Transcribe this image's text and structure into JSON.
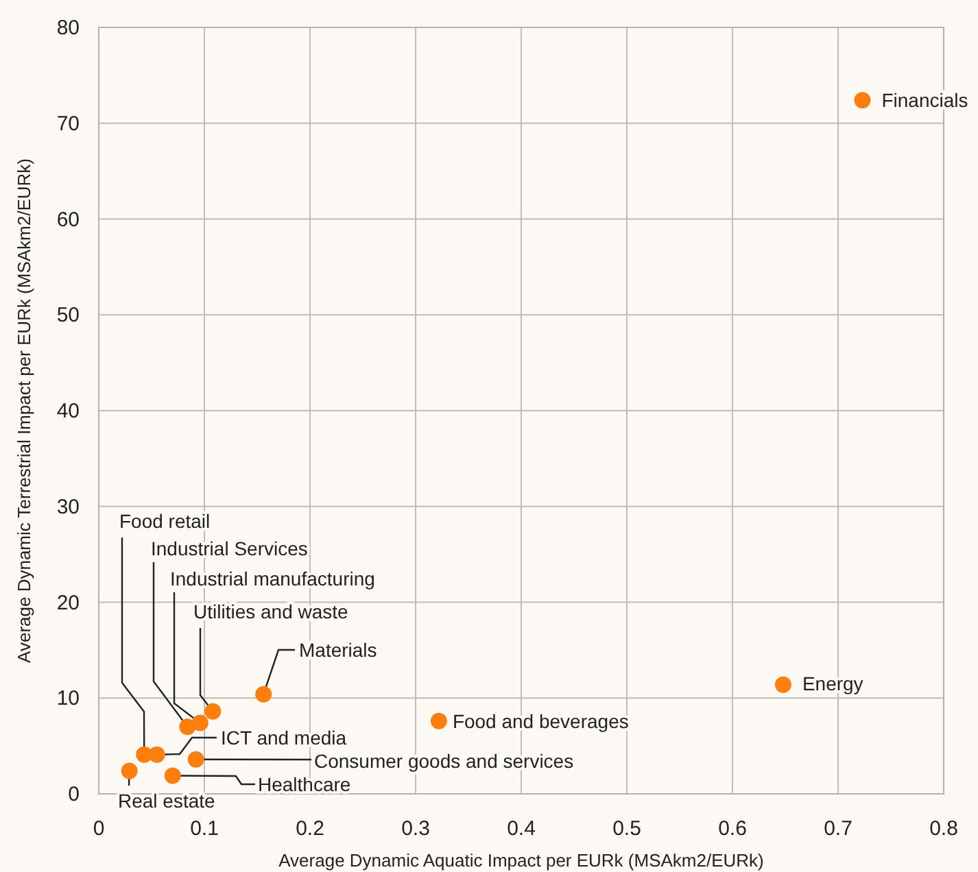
{
  "chart_data": {
    "type": "scatter",
    "xlabel": "Average Dynamic Aquatic Impact per EURk (MSAkm2/EURk)",
    "ylabel": "Average Dynamic Terrestrial Impact per EURk (MSAkm2/EURk)",
    "x": [
      0.723,
      0.648,
      0.322,
      0.156,
      0.108,
      0.096,
      0.084,
      0.043,
      0.055,
      0.092,
      0.07,
      0.029
    ],
    "series": [
      {
        "color": "#ff7f0e",
        "values": [
          72.4,
          11.4,
          7.6,
          10.4,
          8.6,
          7.4,
          7.0,
          4.1,
          4.1,
          3.6,
          1.9,
          2.4
        ]
      }
    ],
    "annotations": [
      {
        "text": "Financials",
        "x": 0.723,
        "y": 72.4
      },
      {
        "text": "Energy",
        "x": 0.648,
        "y": 11.4
      },
      {
        "text": "Food and beverages",
        "x": 0.322,
        "y": 7.6
      },
      {
        "text": "Materials",
        "x": 0.156,
        "y": 10.4
      },
      {
        "text": "Utilities and waste",
        "x": 0.108,
        "y": 8.6
      },
      {
        "text": "Industrial manufacturing",
        "x": 0.096,
        "y": 7.4
      },
      {
        "text": "Industrial Services",
        "x": 0.084,
        "y": 7.0
      },
      {
        "text": "Food retail",
        "x": 0.043,
        "y": 4.1
      },
      {
        "text": "ICT and media",
        "x": 0.055,
        "y": 4.1
      },
      {
        "text": "Consumer goods and services",
        "x": 0.092,
        "y": 3.6
      },
      {
        "text": "Healthcare",
        "x": 0.07,
        "y": 1.9
      },
      {
        "text": "Real estate",
        "x": 0.029,
        "y": 2.4
      }
    ],
    "xlim": [
      0,
      0.8
    ],
    "xticks": [
      0,
      0.1,
      0.2,
      0.3,
      0.4,
      0.5,
      0.6,
      0.7,
      0.8
    ],
    "ylim": [
      0,
      80
    ],
    "yticks": [
      0,
      10,
      20,
      30,
      40,
      50,
      60,
      70,
      80
    ],
    "grid": true,
    "marker": "circle"
  }
}
